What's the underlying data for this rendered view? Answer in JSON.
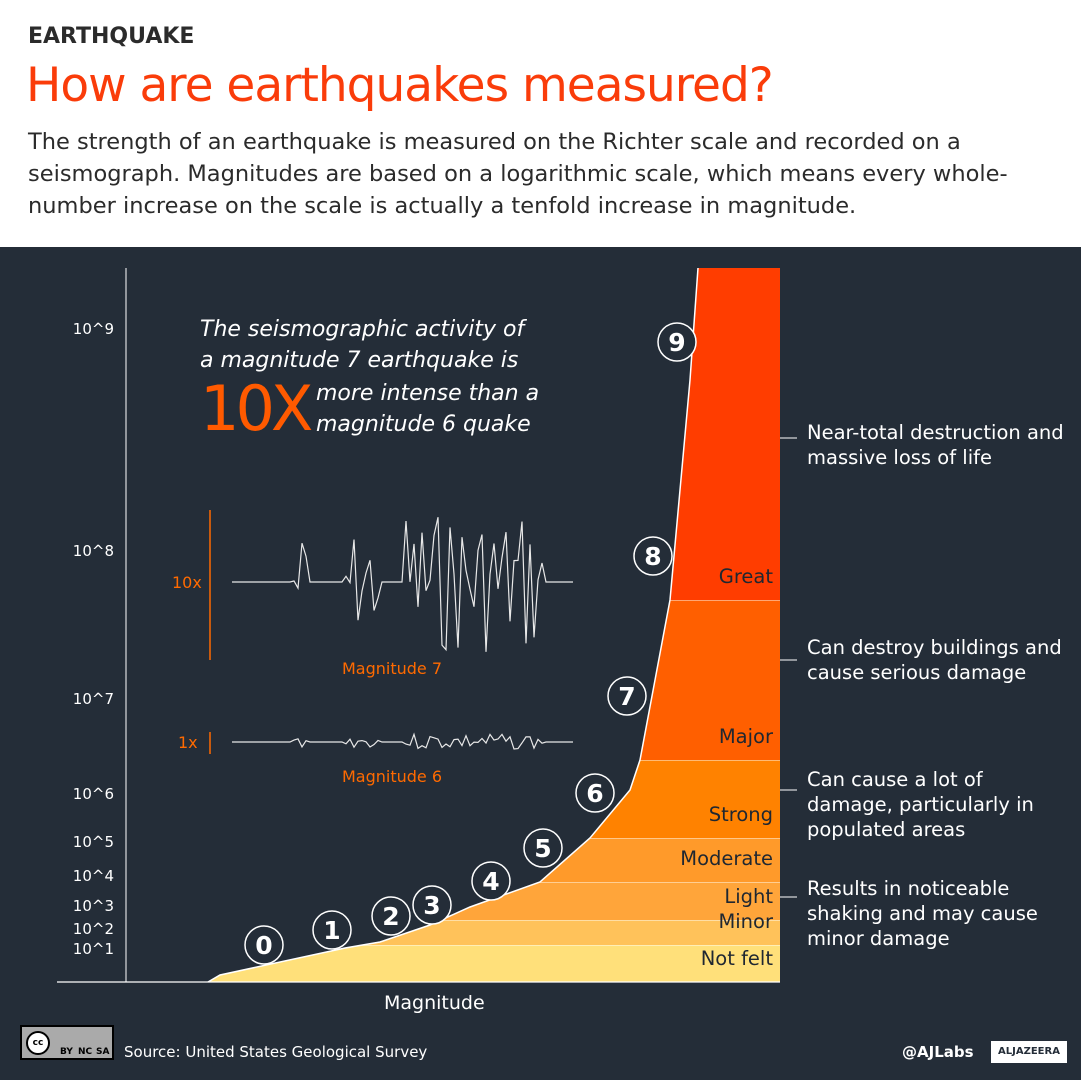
{
  "header": {
    "kicker": "EARTHQUAKE",
    "title": "How are earthquakes measured?",
    "subtitle": "The strength of an earthquake is measured on the Richter scale and recorded on a seismograph. Magnitudes are based on a logarithmic scale, which means every whole-number increase on the scale is actually a tenfold increase in magnitude."
  },
  "callout": {
    "line1": "The seismographic activity of",
    "line2": "a magnitude 7 earthquake is",
    "big": "10X",
    "line3": "more intense than a",
    "line4": "magnitude 6 quake"
  },
  "seismograms": [
    {
      "amp_label": "10x",
      "label": "Magnitude 7"
    },
    {
      "amp_label": "1x",
      "label": "Magnitude 6"
    }
  ],
  "chart_data": {
    "type": "area",
    "xlabel": "Magnitude",
    "x": [
      0,
      1,
      2,
      3,
      4,
      5,
      6,
      7,
      8,
      9
    ],
    "y_scale": "log",
    "yticks": [
      "10^1",
      "10^2",
      "10^3",
      "10^4",
      "10^5",
      "10^6",
      "10^7",
      "10^8",
      "10^9"
    ],
    "bands": [
      {
        "label": "Not felt",
        "color": "#ffe07a"
      },
      {
        "label": "Minor",
        "color": "#ffc25a"
      },
      {
        "label": "Light",
        "color": "#ffa53a"
      },
      {
        "label": "Moderate",
        "color": "#ff9a2a"
      },
      {
        "label": "Strong",
        "color": "#ff8200"
      },
      {
        "label": "Major",
        "color": "#ff5f00"
      },
      {
        "label": "Great",
        "color": "#ff3d00"
      }
    ],
    "descriptions": [
      "Near-total destruction and massive loss of life",
      "Can destroy buildings and cause serious damage",
      "Can cause a lot of damage, particularly in populated areas",
      "Results in noticeable shaking and may cause minor damage"
    ]
  },
  "footer": {
    "source": "Source: United States Geological Survey",
    "handle": "@AJLabs",
    "brand": "ALJAZEERA",
    "license": [
      "BY",
      "NC",
      "SA"
    ]
  },
  "colors": {
    "accent": "#fa3c0a",
    "background": "#242d38"
  }
}
